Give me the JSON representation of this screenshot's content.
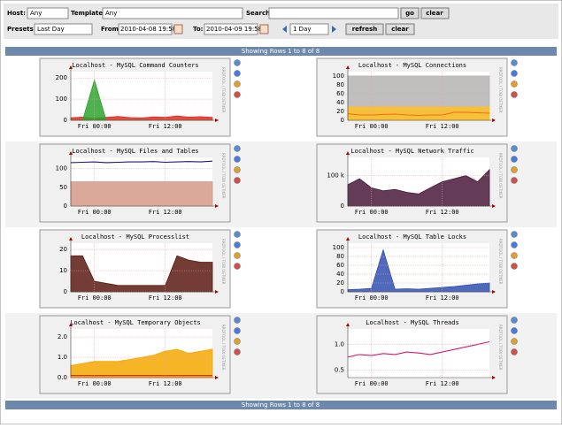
{
  "filters": {
    "host_label": "Host:",
    "host_value": "Any",
    "template_label": "Template:",
    "template_value": "Any",
    "search_label": "Search:",
    "go": "go",
    "clear": "clear",
    "presets_label": "Presets:",
    "presets_value": "Last Day",
    "from_label": "From:",
    "from_value": "2010-04-08 19:58",
    "to_label": "To:",
    "to_value": "2010-04-09 19:58",
    "span_value": "1 Day",
    "refresh": "refresh"
  },
  "status": "Showing Rows 1 to 8 of 8",
  "rrd_note": "RRDTOOL / TOBI OETIKER",
  "chart_data": [
    {
      "type": "area",
      "title": "Localhost - MySQL Command Counters",
      "xlim": [
        0,
        24
      ],
      "x": [
        0,
        2,
        4,
        6,
        8,
        10,
        12,
        14,
        16,
        18,
        20,
        22,
        24
      ],
      "xticks": [
        {
          "value": 4,
          "label": "Fri 00:00"
        },
        {
          "value": 16,
          "label": "Fri 12:00"
        }
      ],
      "ylim": [
        0,
        230
      ],
      "yticks": [
        0,
        100,
        200
      ],
      "series": [
        {
          "type": "area",
          "color": "#e8281e",
          "values": [
            12,
            15,
            10,
            14,
            18,
            13,
            11,
            16,
            14,
            20,
            15,
            17,
            14
          ]
        },
        {
          "type": "area",
          "color": "#2ea52e",
          "values": [
            0,
            0,
            190,
            0,
            0,
            0,
            0,
            0,
            0,
            0,
            0,
            0,
            0
          ]
        }
      ]
    },
    {
      "type": "area",
      "title": "Localhost - MySQL Connections",
      "xlim": [
        0,
        24
      ],
      "x": [
        0,
        2,
        4,
        6,
        8,
        10,
        12,
        14,
        16,
        18,
        20,
        22,
        24
      ],
      "xticks": [
        {
          "value": 4,
          "label": "Fri 00:00"
        },
        {
          "value": 16,
          "label": "Fri 12:00"
        }
      ],
      "ylim": [
        0,
        110
      ],
      "yticks": [
        0,
        20,
        40,
        60,
        80,
        100
      ],
      "series": [
        {
          "type": "area",
          "color": "#b4b4b4",
          "values": [
            100,
            100,
            100,
            100,
            100,
            100,
            100,
            100,
            100,
            100,
            100,
            100,
            100
          ]
        },
        {
          "type": "area",
          "color": "#ffc020",
          "values": [
            30,
            30,
            30,
            30,
            30,
            30,
            30,
            30,
            30,
            30,
            30,
            30,
            30
          ]
        },
        {
          "type": "line",
          "color": "#f07010",
          "values": [
            15,
            12,
            12,
            13,
            14,
            12,
            11,
            12,
            12,
            18,
            18,
            17,
            16
          ]
        }
      ]
    },
    {
      "type": "area",
      "title": "Localhost - MySQL Files and Tables",
      "xlim": [
        0,
        24
      ],
      "x": [
        0,
        2,
        4,
        6,
        8,
        10,
        12,
        14,
        16,
        18,
        20,
        22,
        24
      ],
      "xticks": [
        {
          "value": 4,
          "label": "Fri 00:00"
        },
        {
          "value": 16,
          "label": "Fri 12:00"
        }
      ],
      "ylim": [
        0,
        130
      ],
      "yticks": [
        0,
        50,
        100
      ],
      "series": [
        {
          "type": "area",
          "color": "#d49a88",
          "values": [
            65,
            65,
            65,
            65,
            65,
            65,
            65,
            65,
            65,
            65,
            65,
            65,
            65
          ]
        },
        {
          "type": "line",
          "color": "#1a1a6e",
          "values": [
            116,
            117,
            118,
            116,
            117,
            118,
            118,
            119,
            117,
            118,
            119,
            118,
            120
          ]
        }
      ]
    },
    {
      "type": "area",
      "title": "Localhost - MySQL Network Traffic",
      "xlim": [
        0,
        24
      ],
      "x": [
        0,
        2,
        4,
        6,
        8,
        10,
        12,
        14,
        16,
        18,
        20,
        22,
        24
      ],
      "xticks": [
        {
          "value": 4,
          "label": "Fri 00:00"
        },
        {
          "value": 16,
          "label": "Fri 12:00"
        }
      ],
      "ylim": [
        0,
        160000
      ],
      "yticks": [
        0,
        {
          "value": 100000,
          "label": "100 k"
        }
      ],
      "series": [
        {
          "type": "area",
          "color": "#4a1a3a",
          "values": [
            70000,
            90000,
            60000,
            50000,
            55000,
            45000,
            40000,
            60000,
            80000,
            90000,
            100000,
            80000,
            120000
          ]
        }
      ]
    },
    {
      "type": "area",
      "title": "Localhost - MySQL Processlist",
      "xlim": [
        0,
        24
      ],
      "x": [
        0,
        2,
        4,
        6,
        8,
        10,
        12,
        14,
        16,
        18,
        20,
        22,
        24
      ],
      "xticks": [
        {
          "value": 4,
          "label": "Fri 00:00"
        },
        {
          "value": 16,
          "label": "Fri 12:00"
        }
      ],
      "ylim": [
        0,
        23
      ],
      "yticks": [
        0,
        10,
        20
      ],
      "series": [
        {
          "type": "area",
          "color": "#5a1a10",
          "values": [
            17,
            17,
            5,
            4,
            3,
            3,
            3,
            3,
            3,
            17,
            15,
            14,
            14
          ]
        }
      ]
    },
    {
      "type": "area",
      "title": "Localhost - MySQL Table Locks",
      "xlim": [
        0,
        24
      ],
      "x": [
        0,
        2,
        4,
        6,
        8,
        10,
        12,
        14,
        16,
        18,
        20,
        22,
        24
      ],
      "xticks": [
        {
          "value": 4,
          "label": "Fri 00:00"
        },
        {
          "value": 16,
          "label": "Fri 12:00"
        }
      ],
      "ylim": [
        0,
        110
      ],
      "yticks": [
        0,
        20,
        40,
        60,
        80,
        100
      ],
      "series": [
        {
          "type": "area",
          "color": "#3050b0",
          "values": [
            5,
            6,
            8,
            95,
            6,
            7,
            6,
            8,
            10,
            12,
            15,
            18,
            20
          ]
        }
      ]
    },
    {
      "type": "area",
      "title": "Localhost - MySQL Temporary Objects",
      "xlim": [
        0,
        24
      ],
      "x": [
        0,
        2,
        4,
        6,
        8,
        10,
        12,
        14,
        16,
        18,
        20,
        22,
        24
      ],
      "xticks": [
        {
          "value": 4,
          "label": "Fri 00:00"
        },
        {
          "value": 16,
          "label": "Fri 12:00"
        }
      ],
      "ylim": [
        0,
        2.4
      ],
      "yticks": [
        {
          "value": 0,
          "label": "0.0"
        },
        {
          "value": 1,
          "label": "1.0"
        },
        {
          "value": 2,
          "label": "2.0"
        }
      ],
      "series": [
        {
          "type": "area",
          "color": "#f5a800",
          "values": [
            0.6,
            0.7,
            0.8,
            0.8,
            0.8,
            0.9,
            1.0,
            1.1,
            1.3,
            1.4,
            1.2,
            1.3,
            1.4
          ]
        },
        {
          "type": "line",
          "color": "#d02010",
          "values": [
            0.1,
            0.1,
            0.1,
            0.1,
            0.1,
            0.1,
            0.1,
            0.1,
            0.1,
            0.1,
            0.1,
            0.1,
            0.1
          ]
        }
      ]
    },
    {
      "type": "line",
      "title": "Localhost - MySQL Threads",
      "xlim": [
        0,
        24
      ],
      "x": [
        0,
        2,
        4,
        6,
        8,
        10,
        12,
        14,
        16,
        18,
        20,
        22,
        24
      ],
      "xticks": [
        {
          "value": 4,
          "label": "Fri 00:00"
        },
        {
          "value": 16,
          "label": "Fri 12:00"
        }
      ],
      "ylim": [
        0.35,
        1.3
      ],
      "yticks": [
        {
          "value": 0.5,
          "label": "0.5"
        },
        {
          "value": 1,
          "label": "1.0"
        }
      ],
      "series": [
        {
          "type": "line",
          "color": "#d81870",
          "values": [
            0.75,
            0.8,
            0.78,
            0.82,
            0.8,
            0.85,
            0.83,
            0.8,
            0.85,
            0.9,
            0.95,
            1.0,
            1.05
          ]
        }
      ]
    }
  ]
}
